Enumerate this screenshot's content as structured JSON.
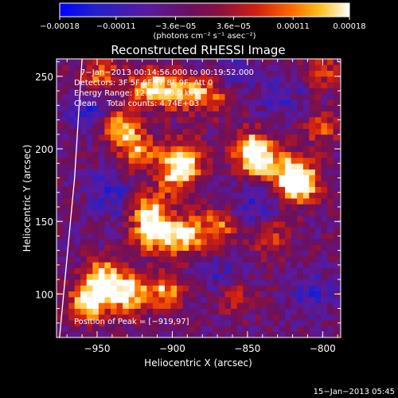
{
  "chart_data": {
    "type": "heatmap",
    "title": "Reconstructed RHESSI Image",
    "xlabel": "Heliocentric X (arcsec)",
    "ylabel": "Heliocentric Y (arcsec)",
    "xlim": [
      -977,
      -788
    ],
    "ylim": [
      70,
      262
    ],
    "xticks": [
      -950,
      -900,
      -850,
      -800
    ],
    "xtick_labels": [
      "−950",
      "−900",
      "−850",
      "−800"
    ],
    "yticks": [
      100,
      150,
      200,
      250
    ],
    "ytick_labels": [
      "100",
      "150",
      "200",
      "250"
    ],
    "grid": false,
    "colorbar": {
      "range": [
        -0.00018,
        0.00018
      ],
      "ticks": [
        -0.00018,
        -0.00011,
        -3.6e-05,
        3.6e-05,
        0.00011,
        0.00018
      ],
      "tick_labels": [
        "−0.00018",
        "−0.00011",
        "−3.6e−05",
        "3.6e−05",
        "0.00011",
        "0.00018"
      ],
      "units_label": "(photons cm⁻² s⁻¹ asec⁻²)"
    },
    "annotations": {
      "time_range": "7−Jan−2013 00:14:56.000 to 00:19:52.000",
      "detectors": "Detectors: 3F 5F 6F 7F 8F 9F, Att 0",
      "energy_range": "Energy Range: 12.0 − 25.0 keV",
      "method_counts": "Clean    Total counts: 4.74E+03",
      "peak": "Position of Peak = [−919,97]"
    },
    "limb_arc": {
      "x": [
        -960,
        -965,
        -970,
        -975
      ],
      "y": [
        262,
        180,
        125,
        70
      ]
    },
    "bright_regions": [
      {
        "x": -955,
        "y": 95,
        "level": 1.0
      },
      {
        "x": -930,
        "y": 100,
        "level": 0.95
      },
      {
        "x": -945,
        "y": 112,
        "level": 0.85
      },
      {
        "x": -905,
        "y": 103,
        "level": 0.7
      },
      {
        "x": -912,
        "y": 142,
        "level": 0.95
      },
      {
        "x": -892,
        "y": 140,
        "level": 0.85
      },
      {
        "x": -915,
        "y": 158,
        "level": 0.75
      },
      {
        "x": -898,
        "y": 183,
        "level": 0.8
      },
      {
        "x": -890,
        "y": 195,
        "level": 0.7
      },
      {
        "x": -848,
        "y": 200,
        "level": 0.9
      },
      {
        "x": -840,
        "y": 190,
        "level": 0.7
      },
      {
        "x": -815,
        "y": 175,
        "level": 0.95
      },
      {
        "x": -820,
        "y": 185,
        "level": 0.7
      },
      {
        "x": -935,
        "y": 215,
        "level": 0.8
      },
      {
        "x": -922,
        "y": 198,
        "level": 0.7
      },
      {
        "x": -915,
        "y": 243,
        "level": 0.85
      },
      {
        "x": -895,
        "y": 240,
        "level": 0.7
      },
      {
        "x": -875,
        "y": 238,
        "level": 0.65
      },
      {
        "x": -948,
        "y": 250,
        "level": 0.6
      },
      {
        "x": -870,
        "y": 147,
        "level": 0.6
      },
      {
        "x": -860,
        "y": 100,
        "level": 0.5
      },
      {
        "x": -835,
        "y": 140,
        "level": 0.45
      },
      {
        "x": -800,
        "y": 215,
        "level": 0.45
      },
      {
        "x": -800,
        "y": 255,
        "level": 0.45
      }
    ],
    "dark_regions": [
      {
        "x": -955,
        "y": 225,
        "level": 0.7
      },
      {
        "x": -940,
        "y": 170,
        "level": 0.55
      },
      {
        "x": -865,
        "y": 110,
        "level": 0.6
      },
      {
        "x": -845,
        "y": 160,
        "level": 0.55
      },
      {
        "x": -805,
        "y": 100,
        "level": 0.5
      },
      {
        "x": -860,
        "y": 255,
        "level": 0.5
      },
      {
        "x": -825,
        "y": 235,
        "level": 0.45
      }
    ]
  },
  "footer_date": "15−Jan−2013 05:45"
}
